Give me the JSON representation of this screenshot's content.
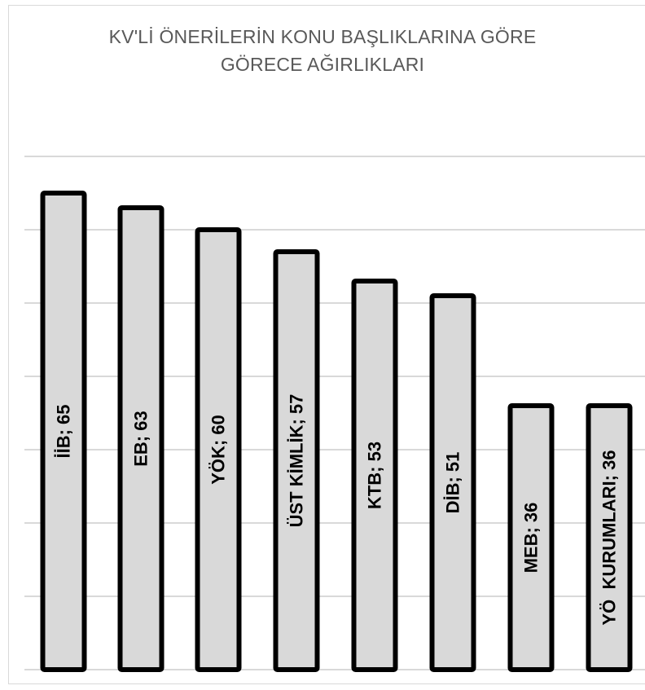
{
  "chart_data": {
    "type": "bar",
    "title_lines": [
      "KV'Lİ ÖNERİLERİN KONU BAŞLIKLARINA GÖRE",
      "GÖRECE AĞIRLIKLARI"
    ],
    "categories": [
      "İİB",
      "EB",
      "YÖK",
      "ÜST KİMLİK",
      "KTB",
      "DİB",
      "MEB",
      "YÖ  KURUMLARI"
    ],
    "values": [
      65,
      63,
      60,
      57,
      53,
      51,
      36,
      36
    ],
    "data_labels": [
      "İİB; 65",
      "EB; 63",
      "YÖK; 60",
      "ÜST KİMLİK; 57",
      "KTB; 53",
      "DİB; 51",
      "MEB; 36",
      "YÖ  KURUMLARI; 36"
    ],
    "ylim": [
      0,
      70
    ],
    "grid": true,
    "colors": {
      "bar_fill": "#d9d9d9",
      "bar_stroke": "#000000",
      "grid": "#d9d9d9",
      "title": "#595959",
      "label": "#000000"
    }
  }
}
